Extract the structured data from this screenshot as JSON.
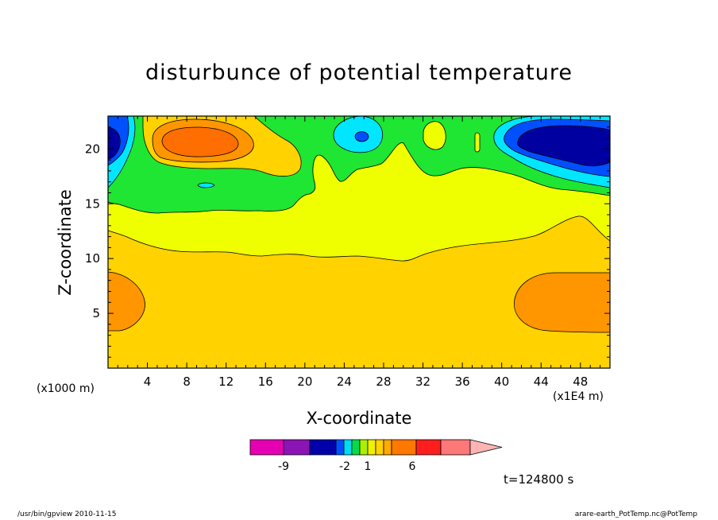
{
  "footer": {
    "left": "/usr/bin/gpview  2010-11-15",
    "right": "arare-earth_PotTemp.nc@PotTemp"
  },
  "time_label": "t=124800 s",
  "chart_data": {
    "type": "heatmap",
    "title": "disturbunce of potential temperature",
    "xlabel": "X-coordinate",
    "ylabel": "Z-coordinate",
    "x_unit_left": "(x1000 m)",
    "x_unit_right": "(x1E4 m)",
    "x_ticks": [
      "4",
      "8",
      "12",
      "16",
      "20",
      "24",
      "28",
      "32",
      "36",
      "40",
      "44",
      "48"
    ],
    "y_ticks": [
      "5",
      "10",
      "15",
      "20"
    ],
    "xlim": [
      0,
      51
    ],
    "ylim": [
      0,
      23
    ],
    "colorbar": {
      "colors": [
        "#e600b4",
        "#8c14b4",
        "#0000aa",
        "#0050ff",
        "#00dcf0",
        "#00dc50",
        "#aaf000",
        "#f0f000",
        "#ffd200",
        "#ffaa00",
        "#ff7800",
        "#ff1e1e",
        "#ff7878",
        "#ffb4b4"
      ],
      "labels": [
        "-9",
        "-2",
        "1",
        "6"
      ],
      "extends": "right"
    },
    "fields": [
      {
        "level": "green",
        "color": "#1ee632"
      },
      {
        "level": "light-yellow",
        "color": "#f0ff00"
      },
      {
        "level": "gold",
        "color": "#ffd200"
      },
      {
        "level": "orange",
        "color": "#ff9600"
      },
      {
        "level": "dark-orange",
        "color": "#ff6e00"
      },
      {
        "level": "cyan",
        "color": "#00e6ff"
      },
      {
        "level": "blue",
        "color": "#0050ff"
      },
      {
        "level": "navy",
        "color": "#0000a0"
      }
    ]
  }
}
